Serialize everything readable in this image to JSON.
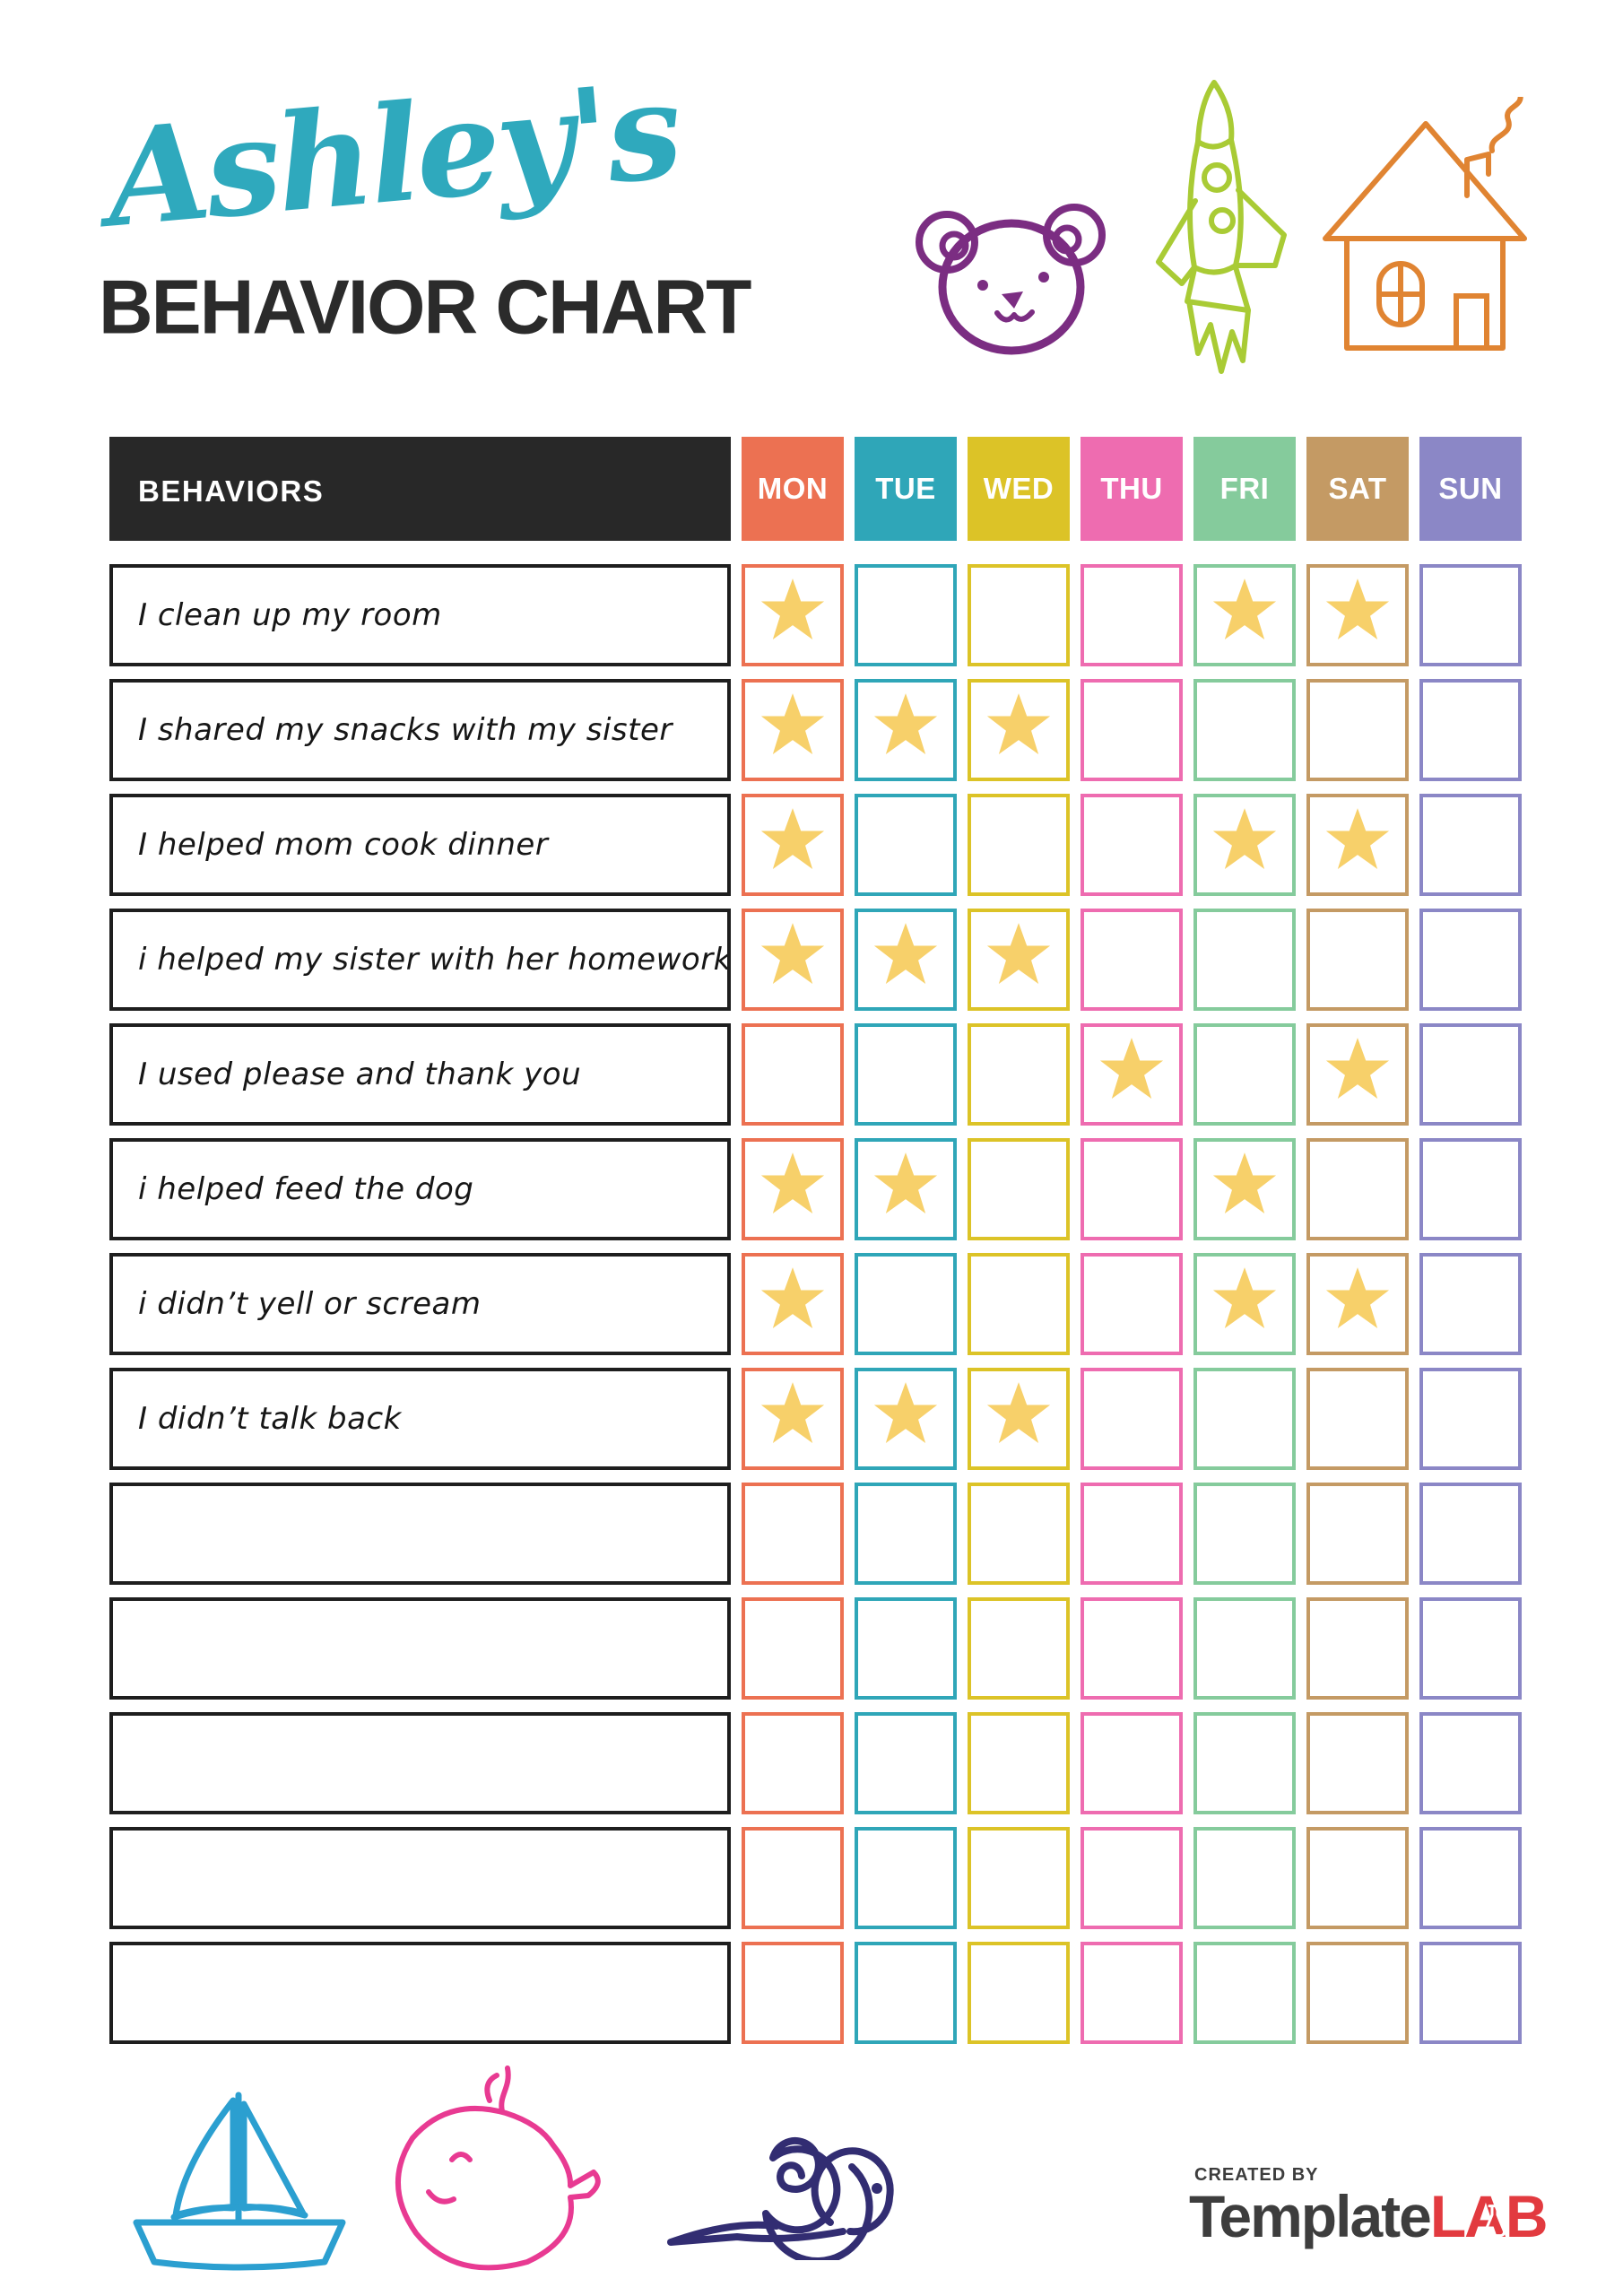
{
  "page": {
    "title_name": "Ashley's",
    "title_heading": "BEHAVIOR CHART"
  },
  "colors": {
    "title-teal": "#2fa9bd",
    "header-dark": "#282828",
    "star": "#f7d06a",
    "bear": "#7b2d82",
    "rocket": "#a9cb35",
    "house": "#e08432",
    "boat": "#2b9fd0",
    "whale": "#e83a92",
    "snail": "#322d72",
    "logo-red": "#e23a3f",
    "logo-gray": "#3d3d3d"
  },
  "table": {
    "behaviors_header": "BEHAVIORS",
    "days": [
      {
        "label": "MON",
        "color": "#ec7152"
      },
      {
        "label": "TUE",
        "color": "#2fa6b8"
      },
      {
        "label": "WED",
        "color": "#dcc327"
      },
      {
        "label": "THU",
        "color": "#ee6cb0"
      },
      {
        "label": "FRI",
        "color": "#85cb9c"
      },
      {
        "label": "SAT",
        "color": "#c49a64"
      },
      {
        "label": "SUN",
        "color": "#8b87c6"
      }
    ],
    "rows": [
      {
        "behavior": "I clean up my room",
        "stars": [
          "MON",
          "FRI",
          "SAT"
        ]
      },
      {
        "behavior": "I shared my snacks with my sister",
        "stars": [
          "MON",
          "TUE",
          "WED"
        ]
      },
      {
        "behavior": "I helped mom cook dinner",
        "stars": [
          "MON",
          "FRI",
          "SAT"
        ]
      },
      {
        "behavior": "i helped my sister with her homework",
        "stars": [
          "MON",
          "TUE",
          "WED"
        ]
      },
      {
        "behavior": "I used please and thank you",
        "stars": [
          "THU",
          "SAT"
        ]
      },
      {
        "behavior": "i helped feed the dog",
        "stars": [
          "MON",
          "TUE",
          "FRI"
        ]
      },
      {
        "behavior": "i didn’t yell or scream",
        "stars": [
          "MON",
          "FRI",
          "SAT"
        ]
      },
      {
        "behavior": "I didn’t talk back",
        "stars": [
          "MON",
          "TUE",
          "WED"
        ]
      },
      {
        "behavior": "",
        "stars": []
      },
      {
        "behavior": "",
        "stars": []
      },
      {
        "behavior": "",
        "stars": []
      },
      {
        "behavior": "",
        "stars": []
      },
      {
        "behavior": "",
        "stars": []
      }
    ]
  },
  "footer": {
    "created_by": "CREATED BY",
    "brand_gray": "Template",
    "brand_red": "LAB"
  }
}
